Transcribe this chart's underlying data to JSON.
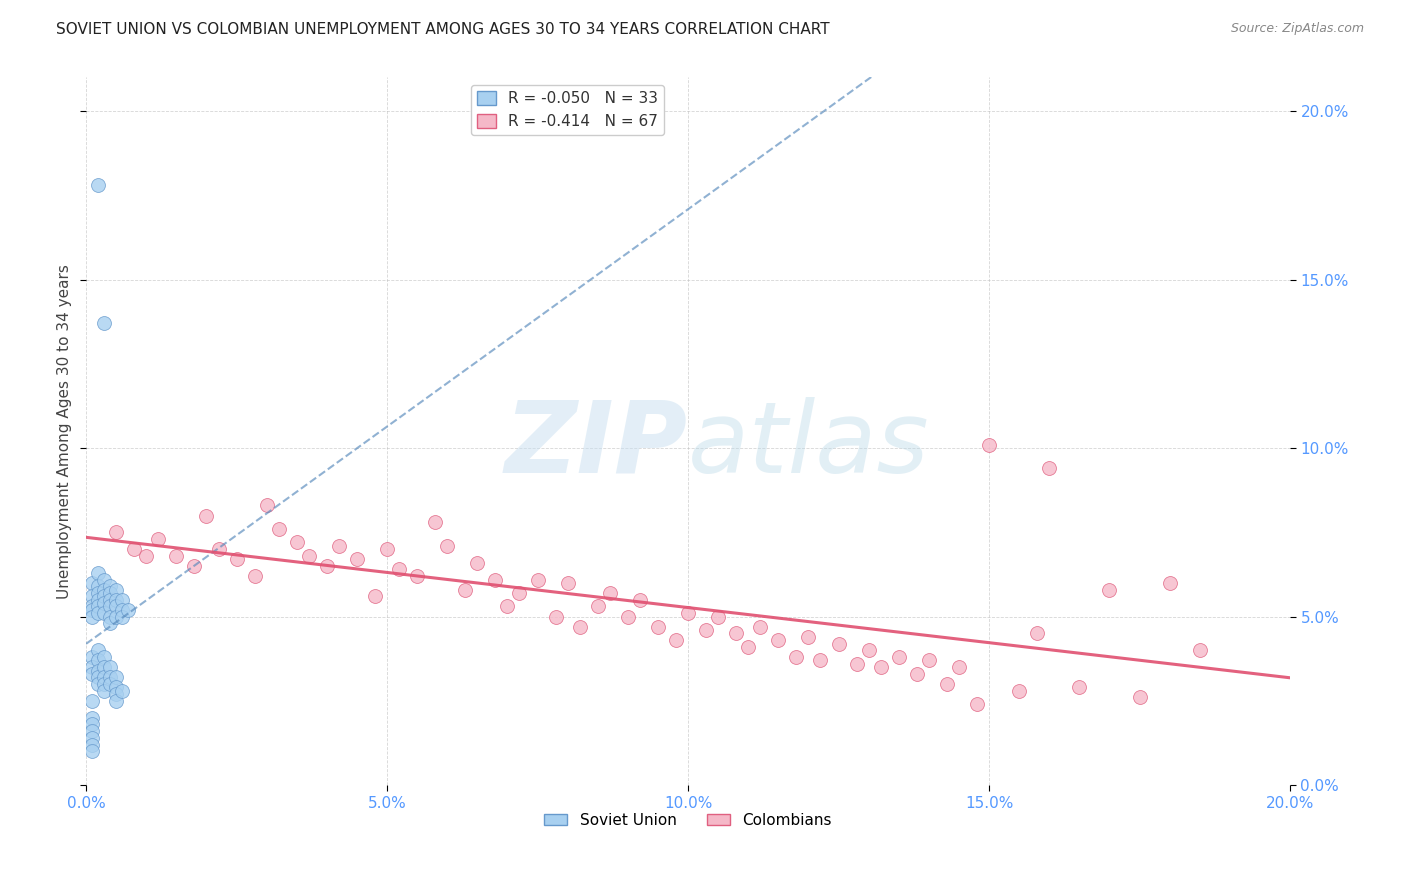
{
  "title": "SOVIET UNION VS COLOMBIAN UNEMPLOYMENT AMONG AGES 30 TO 34 YEARS CORRELATION CHART",
  "source": "Source: ZipAtlas.com",
  "ylabel": "Unemployment Among Ages 30 to 34 years",
  "xlim": [
    0.0,
    0.2
  ],
  "ylim": [
    0.0,
    0.21
  ],
  "xticks": [
    0.0,
    0.05,
    0.1,
    0.15,
    0.2
  ],
  "yticks": [
    0.0,
    0.05,
    0.1,
    0.15,
    0.2
  ],
  "soviet_R": -0.05,
  "soviet_N": 33,
  "colombian_R": -0.414,
  "colombian_N": 67,
  "soviet_color": "#A8D0F0",
  "colombian_color": "#F5B8C8",
  "soviet_edge_color": "#6699CC",
  "colombian_edge_color": "#E06080",
  "soviet_trend_color": "#5588BB",
  "colombian_trend_color": "#E05070",
  "watermark_zip": "ZIP",
  "watermark_atlas": "atlas",
  "background": "#FFFFFF",
  "grid_color": "#BBBBBB",
  "soviet_x": [
    0.001,
    0.001,
    0.001,
    0.001,
    0.001,
    0.002,
    0.002,
    0.002,
    0.002,
    0.002,
    0.002,
    0.003,
    0.003,
    0.003,
    0.003,
    0.003,
    0.004,
    0.004,
    0.004,
    0.004,
    0.004,
    0.004,
    0.005,
    0.005,
    0.005,
    0.005,
    0.006,
    0.006,
    0.006,
    0.007,
    0.002,
    0.003,
    0.001
  ],
  "soviet_y": [
    0.06,
    0.056,
    0.053,
    0.052,
    0.05,
    0.063,
    0.059,
    0.057,
    0.055,
    0.053,
    0.051,
    0.061,
    0.058,
    0.056,
    0.054,
    0.051,
    0.059,
    0.057,
    0.055,
    0.053,
    0.05,
    0.048,
    0.058,
    0.055,
    0.053,
    0.05,
    0.055,
    0.052,
    0.05,
    0.052,
    0.178,
    0.137,
    0.025
  ],
  "soviet_below_x": [
    0.001,
    0.001,
    0.001,
    0.002,
    0.002,
    0.002,
    0.002,
    0.002,
    0.003,
    0.003,
    0.003,
    0.003,
    0.003,
    0.004,
    0.004,
    0.004,
    0.005,
    0.005,
    0.005,
    0.005,
    0.006,
    0.001,
    0.001,
    0.001,
    0.001,
    0.001,
    0.001
  ],
  "soviet_below_y": [
    0.038,
    0.035,
    0.033,
    0.04,
    0.037,
    0.034,
    0.032,
    0.03,
    0.038,
    0.035,
    0.032,
    0.03,
    0.028,
    0.035,
    0.032,
    0.03,
    0.032,
    0.029,
    0.027,
    0.025,
    0.028,
    0.02,
    0.018,
    0.016,
    0.014,
    0.012,
    0.01
  ],
  "colombian_x": [
    0.005,
    0.008,
    0.01,
    0.012,
    0.015,
    0.018,
    0.02,
    0.022,
    0.025,
    0.028,
    0.03,
    0.032,
    0.035,
    0.037,
    0.04,
    0.042,
    0.045,
    0.048,
    0.05,
    0.052,
    0.055,
    0.058,
    0.06,
    0.063,
    0.065,
    0.068,
    0.07,
    0.072,
    0.075,
    0.078,
    0.08,
    0.082,
    0.085,
    0.087,
    0.09,
    0.092,
    0.095,
    0.098,
    0.1,
    0.103,
    0.105,
    0.108,
    0.11,
    0.112,
    0.115,
    0.118,
    0.12,
    0.122,
    0.125,
    0.128,
    0.13,
    0.132,
    0.135,
    0.138,
    0.14,
    0.143,
    0.145,
    0.148,
    0.15,
    0.155,
    0.158,
    0.16,
    0.165,
    0.17,
    0.175,
    0.18,
    0.185
  ],
  "colombian_y": [
    0.075,
    0.07,
    0.068,
    0.073,
    0.068,
    0.065,
    0.08,
    0.07,
    0.067,
    0.062,
    0.083,
    0.076,
    0.072,
    0.068,
    0.065,
    0.071,
    0.067,
    0.056,
    0.07,
    0.064,
    0.062,
    0.078,
    0.071,
    0.058,
    0.066,
    0.061,
    0.053,
    0.057,
    0.061,
    0.05,
    0.06,
    0.047,
    0.053,
    0.057,
    0.05,
    0.055,
    0.047,
    0.043,
    0.051,
    0.046,
    0.05,
    0.045,
    0.041,
    0.047,
    0.043,
    0.038,
    0.044,
    0.037,
    0.042,
    0.036,
    0.04,
    0.035,
    0.038,
    0.033,
    0.037,
    0.03,
    0.035,
    0.024,
    0.101,
    0.028,
    0.045,
    0.094,
    0.029,
    0.058,
    0.026,
    0.06,
    0.04
  ]
}
